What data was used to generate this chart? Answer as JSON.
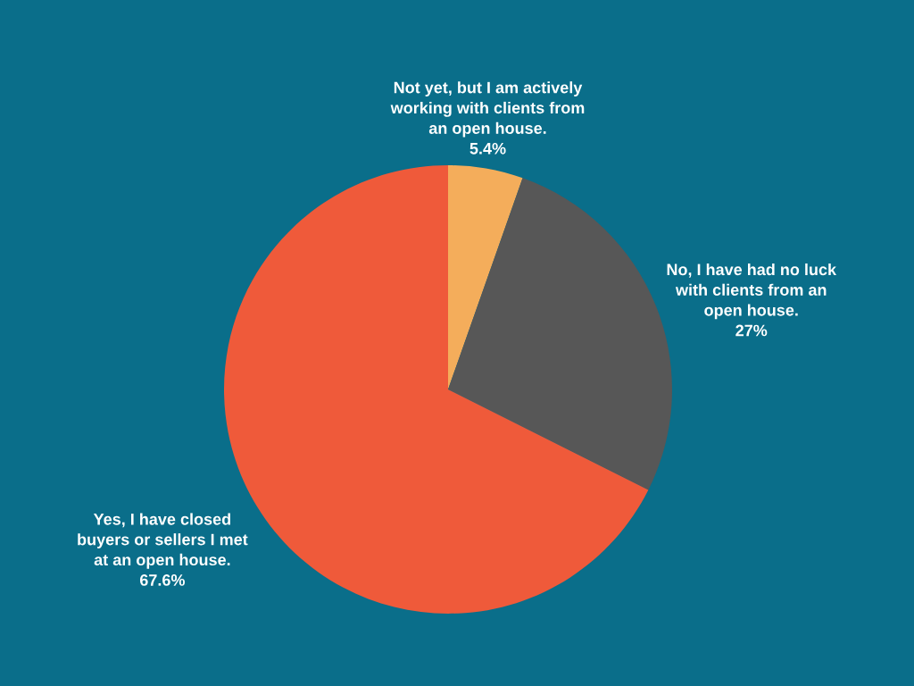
{
  "chart_data": {
    "type": "pie",
    "categories": [
      "Not yet, but I am actively\nworking with clients from\nan open house.",
      "No, I have had no luck\nwith clients from an\nopen house.",
      "Yes, I have closed\nbuyers or sellers I met\nat an open house."
    ],
    "values": [
      5.4,
      27,
      67.6
    ],
    "colors": [
      "#f4ad5b",
      "#575757",
      "#ef5a3a"
    ],
    "value_labels": [
      "5.4%",
      "27%",
      "67.6%"
    ]
  }
}
